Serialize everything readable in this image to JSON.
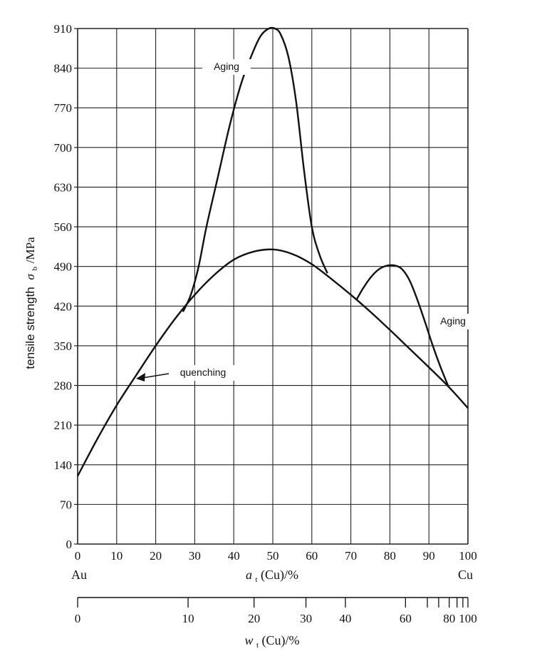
{
  "chart_data": {
    "type": "line",
    "ylabel_text": "tensile strength",
    "ylabel_symbol": "σ",
    "ylabel_sub": "b",
    "ylabel_unit": "/MPa",
    "xlabel_main": "a",
    "xlabel_main_sub": "t",
    "xlabel_main_unit": "(Cu)/%",
    "xlabel_secondary": "w",
    "xlabel_secondary_sub": "t",
    "xlabel_secondary_unit": "(Cu)/%",
    "x_left_label": "Au",
    "x_right_label": "Cu",
    "xlim": [
      0,
      100
    ],
    "ylim": [
      0,
      910
    ],
    "grid": true,
    "x_ticks": [
      0,
      10,
      20,
      30,
      40,
      50,
      60,
      70,
      80,
      90,
      100
    ],
    "y_ticks": [
      0,
      70,
      140,
      210,
      280,
      350,
      420,
      490,
      560,
      630,
      700,
      770,
      840,
      910
    ],
    "secondary_axis": {
      "labeled_ticks": [
        {
          "w": 0,
          "a": 0
        },
        {
          "w": 10,
          "a": 28.3
        },
        {
          "w": 20,
          "a": 45.2
        },
        {
          "w": 30,
          "a": 58.5
        },
        {
          "w": 40,
          "a": 68.6
        },
        {
          "w": 60,
          "a": 84.0
        },
        {
          "w": 80,
          "a": 95.2
        },
        {
          "w": 100,
          "a": 100
        }
      ],
      "minor_ticks_a": [
        89.6,
        92.5,
        97.2,
        98.7
      ]
    },
    "series": [
      {
        "name": "quenching",
        "x": [
          0,
          5,
          10,
          15,
          20,
          25,
          30,
          35,
          40,
          45,
          50,
          55,
          60,
          65,
          70,
          75,
          80,
          85,
          90,
          95,
          100
        ],
        "y": [
          120,
          185,
          245,
          298,
          350,
          398,
          440,
          475,
          502,
          516,
          520,
          512,
          494,
          468,
          440,
          410,
          378,
          345,
          312,
          278,
          240
        ]
      },
      {
        "name": "Aging",
        "x": [
          27,
          29,
          31,
          33,
          36,
          39,
          42,
          45,
          47,
          49,
          50.5,
          52,
          54,
          56,
          58,
          60,
          62,
          64
        ],
        "y": [
          410,
          440,
          490,
          560,
          650,
          740,
          815,
          870,
          898,
          910,
          910,
          900,
          860,
          780,
          660,
          560,
          510,
          478
        ]
      },
      {
        "name": "Aging",
        "x": [
          71.5,
          73,
          75,
          77,
          79,
          81,
          83,
          85,
          87,
          89,
          91,
          93,
          95
        ],
        "y": [
          432,
          450,
          470,
          484,
          491,
          492,
          486,
          466,
          432,
          392,
          350,
          312,
          278
        ]
      }
    ],
    "annotations": [
      {
        "text": "Aging"
      },
      {
        "text": "quenching"
      },
      {
        "text": "Aging"
      }
    ]
  }
}
